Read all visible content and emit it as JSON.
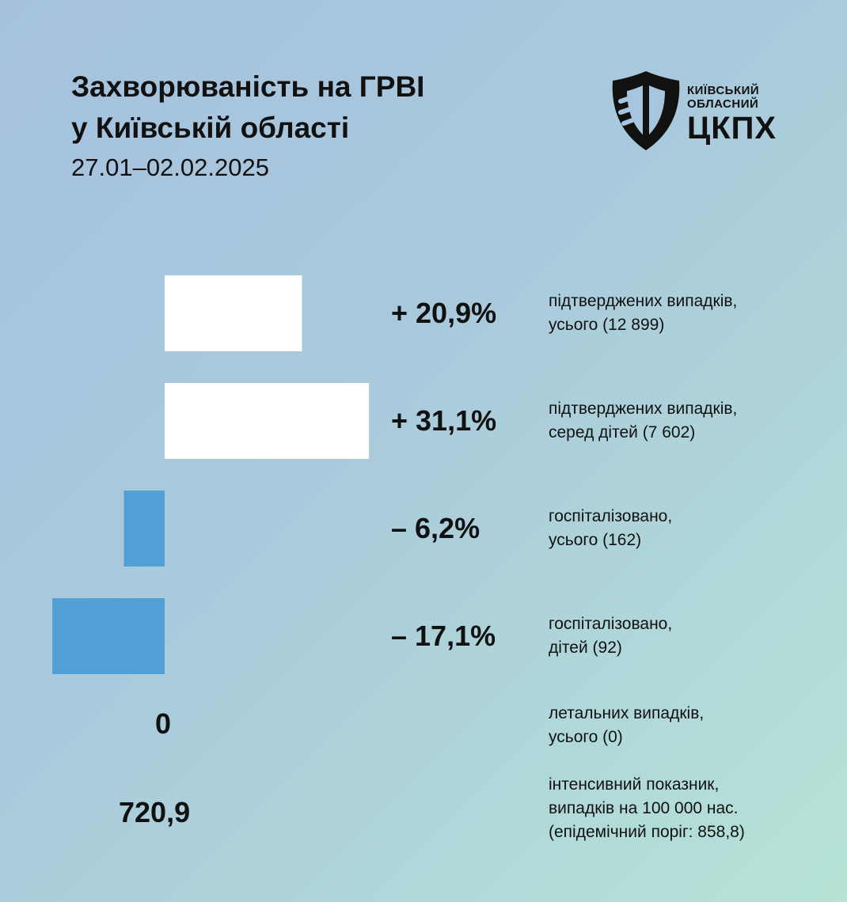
{
  "title_line1": "Захворюваність на ГРВІ",
  "title_line2": "у Київській області",
  "date_range": "27.01–02.02.2025",
  "logo": {
    "line1": "КИЇВСЬКИЙ",
    "line2": "ОБЛАСНИЙ",
    "line3": "ЦКПХ"
  },
  "colors": {
    "positive_bar": "#ffffff",
    "negative_bar": "#519fd4",
    "text": "#111111"
  },
  "chart_data": {
    "type": "bar",
    "orientation": "horizontal",
    "unit": "%",
    "categories": [
      "підтверджених випадків, усього (12 899)",
      "підтверджених випадків, серед дітей (7 602)",
      "госпіталізовано, усього (162)",
      "госпіталізовано, дітей (92)"
    ],
    "values": [
      20.9,
      31.1,
      -6.2,
      -17.1
    ],
    "labels": [
      "+ 20,9%",
      "+ 31,1%",
      "– 6,2%",
      "– 17,1%"
    ],
    "descriptions": [
      [
        "підтверджених випадків,",
        "усього (12 899)"
      ],
      [
        "підтверджених випадків,",
        "серед дітей (7 602)"
      ],
      [
        "госпіталізовано,",
        "усього (162)"
      ],
      [
        "госпіталізовано,",
        "дітей (92)"
      ]
    ]
  },
  "extra_stats": [
    {
      "value": "0",
      "desc": [
        "летальних випадків,",
        "усього (0)"
      ]
    },
    {
      "value": "720,9",
      "desc": [
        "інтенсивний показник,",
        "випадків на 100 000 нас.",
        "(епідемічний поріг: 858,8)"
      ]
    }
  ]
}
